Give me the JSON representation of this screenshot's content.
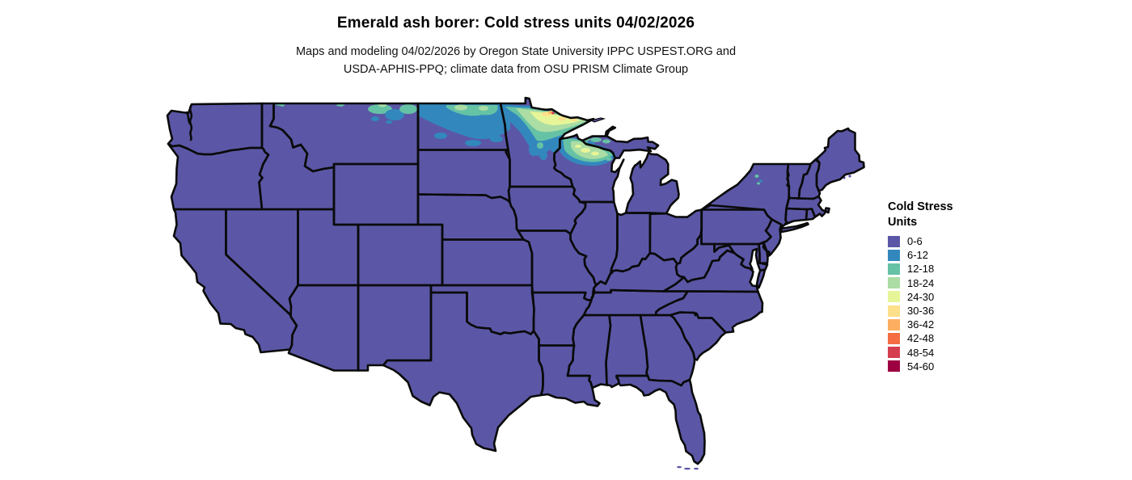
{
  "title": "Emerald ash borer: Cold stress units 04/02/2026",
  "subtitle_line1": "Maps and modeling 04/02/2026 by Oregon State University IPPC USPEST.ORG and",
  "subtitle_line2": "USDA-APHIS-PPQ; climate data from OSU PRISM Climate Group",
  "legend": {
    "title_line1": "Cold Stress",
    "title_line2": "Units",
    "items": [
      {
        "label": "0-6",
        "color": "#5b57a6"
      },
      {
        "label": "6-12",
        "color": "#3288bd"
      },
      {
        "label": "12-18",
        "color": "#66c2a5"
      },
      {
        "label": "18-24",
        "color": "#abdda4"
      },
      {
        "label": "24-30",
        "color": "#e6f598"
      },
      {
        "label": "30-36",
        "color": "#fee08b"
      },
      {
        "label": "36-42",
        "color": "#fdae61"
      },
      {
        "label": "42-48",
        "color": "#f46d43"
      },
      {
        "label": "48-54",
        "color": "#d53e4f"
      },
      {
        "label": "54-60",
        "color": "#9e0142"
      }
    ]
  },
  "map": {
    "region": "Continental United States",
    "base_value_bin": "0-6",
    "base_fill": "#5b57a6",
    "border_color": "#0a0a0a",
    "elevated_stress_regions": "northern Montana, northern North Dakota, northeastern Minnesota, northern Wisconsin, Michigan Upper Peninsula, Adirondacks (New York)"
  }
}
